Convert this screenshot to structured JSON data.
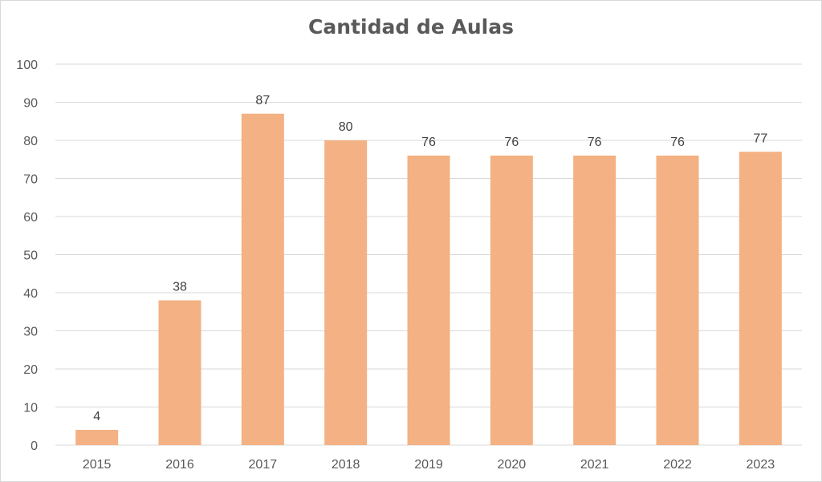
{
  "chart_data": {
    "type": "bar",
    "title": "Cantidad de Aulas",
    "xlabel": "",
    "ylabel": "",
    "categories": [
      "2015",
      "2016",
      "2017",
      "2018",
      "2019",
      "2020",
      "2021",
      "2022",
      "2023"
    ],
    "values": [
      4,
      38,
      87,
      80,
      76,
      76,
      76,
      76,
      77
    ],
    "ylim": [
      0,
      100
    ],
    "yticks": [
      0,
      10,
      20,
      30,
      40,
      50,
      60,
      70,
      80,
      90,
      100
    ],
    "grid": true,
    "legend": "none",
    "data_labels": true,
    "colors": {
      "bar": "#F4B183",
      "grid": "#D9D9D9",
      "text": "#595959"
    }
  }
}
